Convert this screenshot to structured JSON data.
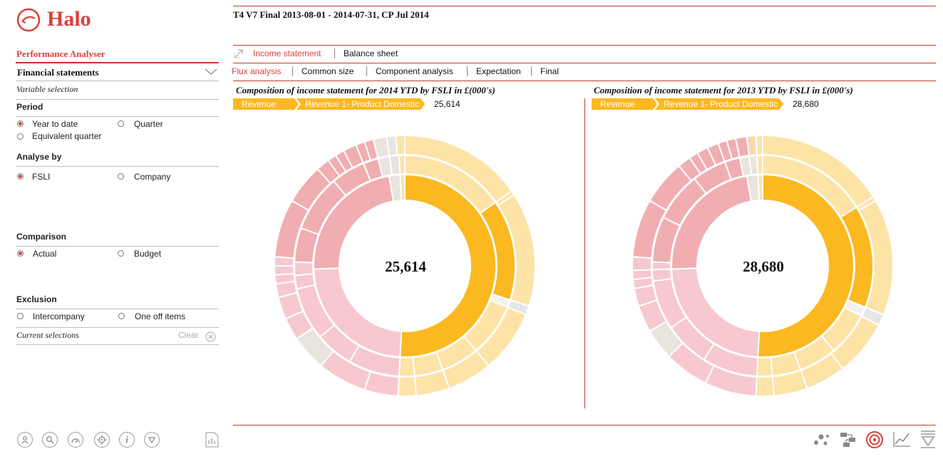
{
  "app": {
    "name": "Halo"
  },
  "report_title": "T4 V7 Final 2013-08-01 - 2014-07-31, CP Jul 2014",
  "sidebar": {
    "module": "Performance Analyser",
    "section": "Financial statements",
    "variable_selection": "Variable selection",
    "period": {
      "label": "Period",
      "options": [
        "Year to date",
        "Quarter",
        "Equivalent quarter"
      ],
      "selected": "Year to date"
    },
    "analyse_by": {
      "label": "Analyse by",
      "options": [
        "FSLI",
        "Company"
      ],
      "selected": "FSLI"
    },
    "comparison": {
      "label": "Comparison",
      "options": [
        "Actual",
        "Budget"
      ],
      "selected": "Actual"
    },
    "exclusion": {
      "label": "Exclusion",
      "options": [
        "Intercompany",
        "One off items"
      ]
    },
    "current_selections": "Current selections",
    "clear": "Clear"
  },
  "tabs": {
    "primary": [
      "Income statement",
      "Balance sheet"
    ],
    "primary_active": "Income statement",
    "secondary": [
      "Flux analysis",
      "Common size",
      "Component analysis",
      "Expectation",
      "Final"
    ],
    "secondary_active": "Flux analysis"
  },
  "colors": {
    "brand_red": "#d9413a",
    "revenue_gold": "#fbb820",
    "revenue_light": "#fde3a6",
    "cost_pink": "#f7c8cf",
    "cost_rose": "#f0aeb2",
    "neutral": "#e8e4de"
  },
  "charts": [
    {
      "title": "Composition of income statement for 2014 YTD by FSLI in £(000's)",
      "breadcrumb": [
        "Revenue",
        "Revenue 1- Product Domestic"
      ],
      "value": "25,614",
      "center": "25,614"
    },
    {
      "title": "Composition of income statement for 2013 YTD by FSLI in £(000's)",
      "breadcrumb": [
        "Revenue",
        "Revenue 1- Product Domestic"
      ],
      "value": "28,680",
      "center": "28,680"
    }
  ],
  "icons": {
    "left_toolbar": [
      "user-icon",
      "search-icon",
      "dashboard-icon",
      "target-icon",
      "info-icon",
      "filter-icon",
      "report-icon"
    ],
    "right_toolbar": [
      "scatter-icon",
      "hierarchy-icon",
      "sunburst-icon",
      "line-chart-icon",
      "waterfall-icon"
    ]
  }
}
